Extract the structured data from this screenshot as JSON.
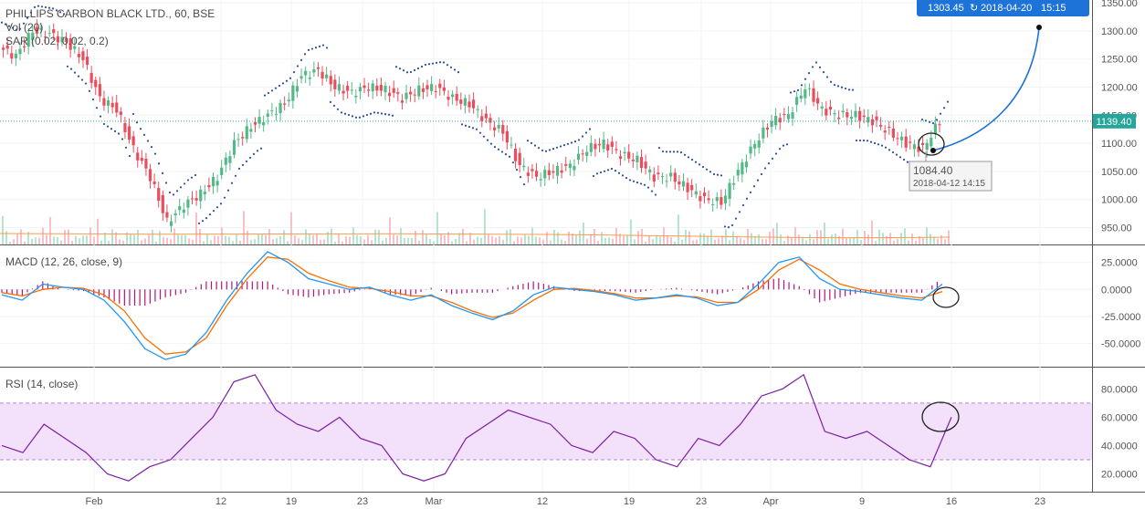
{
  "legend": {
    "symbol_line": "PHILLIPS CARBON BLACK LTD., 60, BSE",
    "vol_line": "Vol (20)",
    "sar_line": "SAR (0.02, 0.02, 0.2)"
  },
  "macd_title": "MACD (12, 26, close, 9)",
  "rsi_title": "RSI (14, close)",
  "x_ticks": [
    "Feb",
    "12",
    "19",
    "23",
    "Mar",
    "12",
    "19",
    "23",
    "Apr",
    "9",
    "16",
    "23"
  ],
  "price_axis": {
    "ticks": [
      "1350.00",
      "1300.00",
      "1250.00",
      "1200.00",
      "1150.00",
      "1100.00",
      "1050.00",
      "1000.00",
      "950.00"
    ]
  },
  "macd_axis": {
    "ticks": [
      "25.0000",
      "0.0000",
      "-25.0000",
      "-50.0000"
    ]
  },
  "rsi_axis": {
    "ticks": [
      "80.0000",
      "60.0000",
      "40.0000",
      "20.0000"
    ]
  },
  "last_price_label": "1139.40",
  "projection_label": {
    "price": "1303.45",
    "date": "2018-04-20",
    "time": "15:15"
  },
  "low_marker": {
    "price": "1084.40",
    "datetime": "2018-04-12 14:15"
  },
  "colors": {
    "up": "#53b987",
    "down": "#eb4d5c",
    "sar": "#2d4fa0",
    "macd": "#2196f3",
    "signal": "#ff6d00",
    "hist": "#b0177a",
    "rsi": "#7b1fa2",
    "rsi_band": "#f3e0fb",
    "projection": "#1e73d8",
    "last_price": "#26a69a"
  },
  "chart_data": [
    {
      "type": "candlestick",
      "title": "PHILLIPS CARBON BLACK LTD., 60, BSE",
      "ylim": [
        920,
        1355
      ],
      "x_ticks": [
        "Feb",
        "12",
        "19",
        "23",
        "Mar",
        "12",
        "19",
        "23",
        "Apr",
        "9",
        "16",
        "23"
      ],
      "close_path": [
        [
          0,
          1270
        ],
        [
          1,
          1255
        ],
        [
          2,
          1300
        ],
        [
          3,
          1295
        ],
        [
          4,
          1280
        ],
        [
          5,
          1250
        ],
        [
          6,
          1180
        ],
        [
          7,
          1160
        ],
        [
          8,
          1090
        ],
        [
          9,
          1040
        ],
        [
          10,
          960
        ],
        [
          11,
          990
        ],
        [
          12,
          1010
        ],
        [
          13,
          1040
        ],
        [
          14,
          1100
        ],
        [
          15,
          1130
        ],
        [
          16,
          1150
        ],
        [
          17,
          1170
        ],
        [
          18,
          1220
        ],
        [
          19,
          1230
        ],
        [
          20,
          1200
        ],
        [
          21,
          1190
        ],
        [
          22,
          1200
        ],
        [
          23,
          1195
        ],
        [
          24,
          1180
        ],
        [
          25,
          1195
        ],
        [
          26,
          1200
        ],
        [
          27,
          1180
        ],
        [
          28,
          1170
        ],
        [
          29,
          1140
        ],
        [
          30,
          1120
        ],
        [
          31,
          1060
        ],
        [
          32,
          1040
        ],
        [
          33,
          1050
        ],
        [
          34,
          1060
        ],
        [
          35,
          1090
        ],
        [
          36,
          1100
        ],
        [
          37,
          1080
        ],
        [
          38,
          1070
        ],
        [
          39,
          1040
        ],
        [
          40,
          1040
        ],
        [
          41,
          1020
        ],
        [
          42,
          1000
        ],
        [
          43,
          995
        ],
        [
          44,
          1050
        ],
        [
          45,
          1100
        ],
        [
          46,
          1140
        ],
        [
          47,
          1150
        ],
        [
          48,
          1200
        ],
        [
          49,
          1160
        ],
        [
          50,
          1150
        ],
        [
          51,
          1150
        ],
        [
          52,
          1140
        ],
        [
          53,
          1120
        ],
        [
          54,
          1100
        ],
        [
          55,
          1090
        ],
        [
          56,
          1139.4
        ]
      ],
      "last_price": 1139.4
    },
    {
      "type": "line",
      "title": "MACD (12, 26, close, 9)",
      "ylim": [
        -70,
        40
      ],
      "series": [
        {
          "name": "MACD",
          "values": [
            -5,
            -10,
            5,
            2,
            0,
            -10,
            -30,
            -55,
            -65,
            -60,
            -40,
            -10,
            15,
            35,
            25,
            10,
            5,
            0,
            2,
            -5,
            -10,
            -5,
            -15,
            -22,
            -28,
            -20,
            -5,
            2,
            0,
            -2,
            -5,
            -10,
            -8,
            -5,
            -8,
            -15,
            -12,
            5,
            25,
            30,
            10,
            0,
            -2,
            -5,
            -8,
            -10,
            5
          ]
        },
        {
          "name": "Signal",
          "values": [
            -3,
            -6,
            0,
            2,
            1,
            -5,
            -20,
            -45,
            -60,
            -58,
            -45,
            -15,
            10,
            30,
            28,
            15,
            8,
            2,
            1,
            -2,
            -6,
            -6,
            -12,
            -20,
            -26,
            -22,
            -10,
            0,
            1,
            -1,
            -4,
            -8,
            -8,
            -6,
            -7,
            -12,
            -12,
            0,
            18,
            28,
            18,
            5,
            0,
            -3,
            -6,
            -8,
            -2
          ]
        }
      ]
    },
    {
      "type": "line",
      "title": "RSI (14, close)",
      "ylim": [
        10,
        95
      ],
      "series": [
        {
          "name": "RSI",
          "values": [
            40,
            35,
            55,
            45,
            35,
            20,
            15,
            25,
            30,
            45,
            60,
            85,
            90,
            65,
            55,
            50,
            60,
            45,
            40,
            20,
            15,
            20,
            45,
            55,
            65,
            60,
            55,
            40,
            35,
            50,
            45,
            30,
            25,
            45,
            40,
            55,
            75,
            80,
            90,
            50,
            45,
            50,
            40,
            30,
            25,
            60
          ]
        }
      ]
    }
  ]
}
